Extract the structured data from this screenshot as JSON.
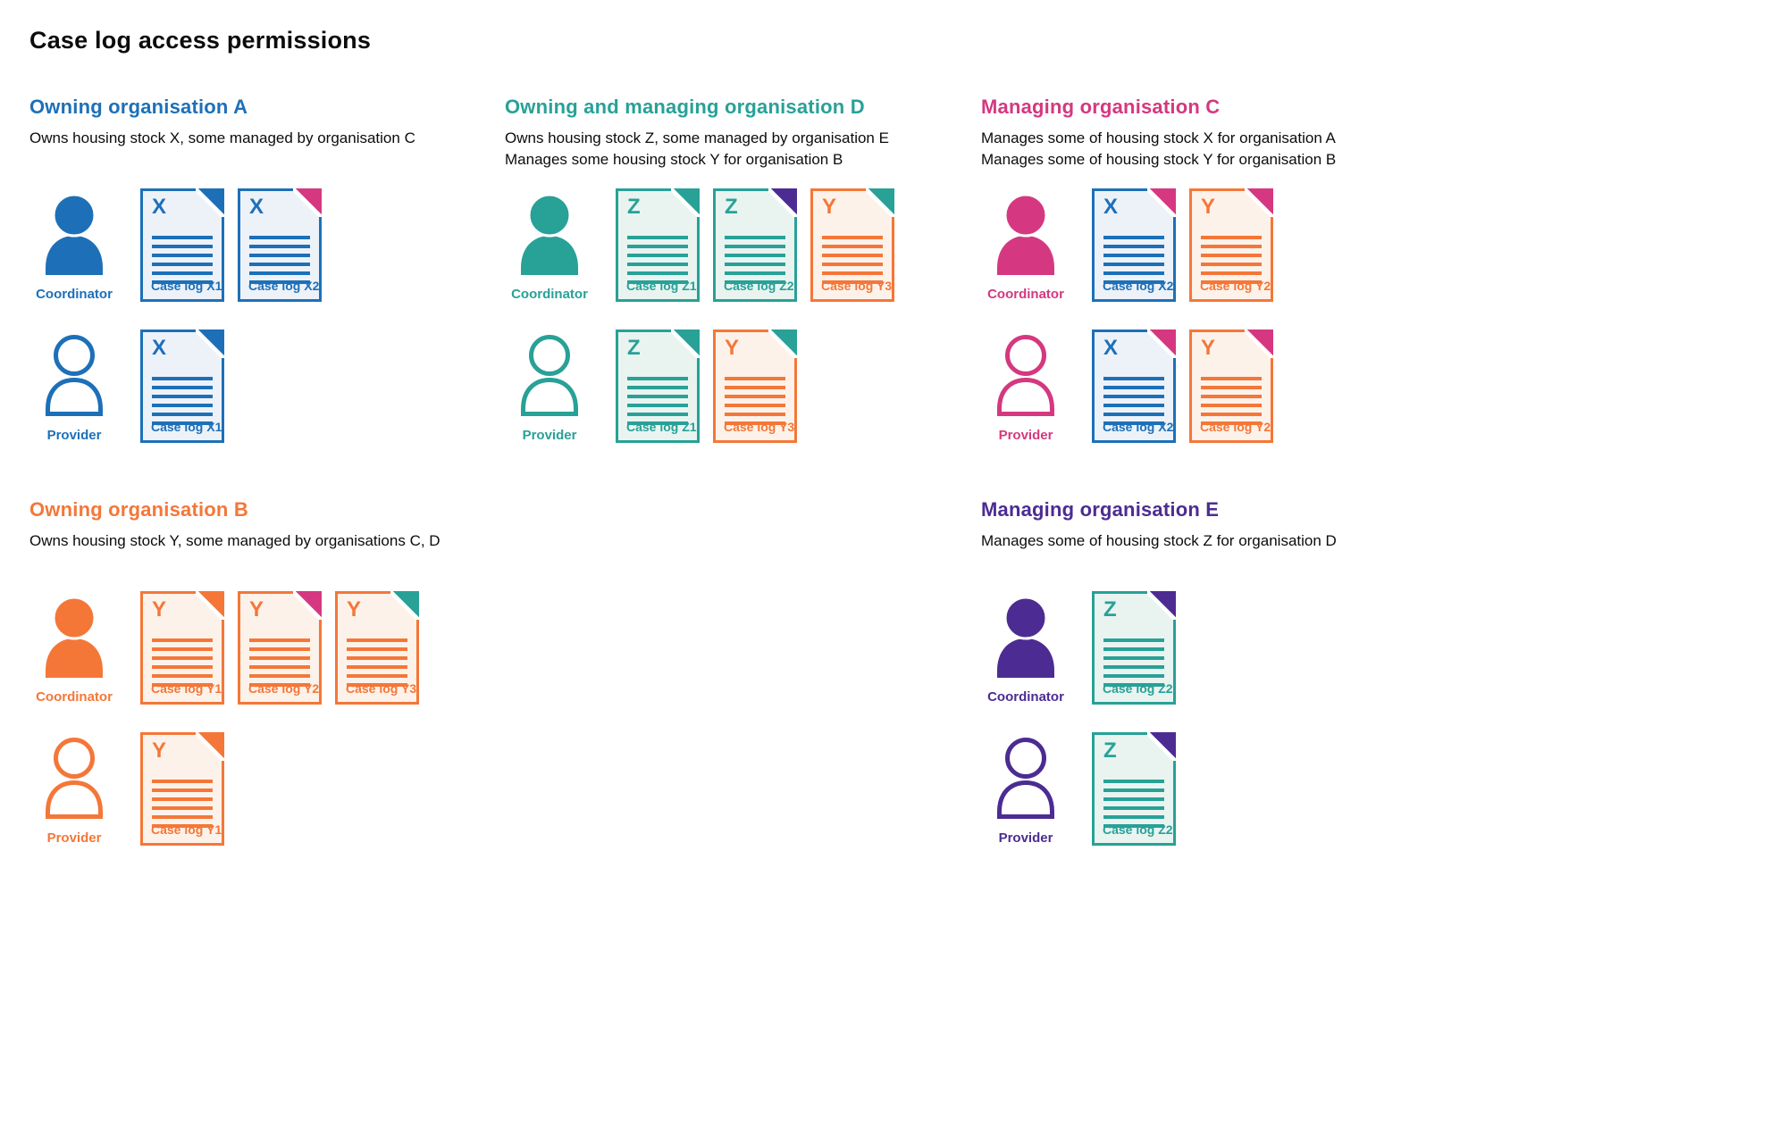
{
  "page": {
    "title": "Case log access permissions",
    "background": "#ffffff",
    "text_color": "#0b0c0c"
  },
  "colors": {
    "blue": "#1d70b8",
    "teal": "#28a197",
    "pink": "#d53880",
    "orange": "#f47738",
    "purple": "#4c2c92"
  },
  "doc_tints": {
    "blue": "#edf2f9",
    "teal": "#e9f4f1",
    "orange": "#fdf2ea"
  },
  "sections": [
    {
      "id": "owning-organisation-a",
      "heading": "Owning organisation A",
      "color": "blue",
      "description_lines": [
        "Owns housing stock X, some managed by organisation C"
      ],
      "grid": {
        "row": 1,
        "col": 1
      },
      "rows": [
        {
          "role": "Coordinator",
          "person_style": "filled",
          "person_color": "blue",
          "docs": [
            {
              "letter": "X",
              "label": "Case log X1",
              "doc_color": "blue",
              "fold_color": "blue"
            },
            {
              "letter": "X",
              "label": "Case log X2",
              "doc_color": "blue",
              "fold_color": "pink"
            }
          ]
        },
        {
          "role": "Provider",
          "person_style": "outline",
          "person_color": "blue",
          "docs": [
            {
              "letter": "X",
              "label": "Case log X1",
              "doc_color": "blue",
              "fold_color": "blue"
            }
          ]
        }
      ]
    },
    {
      "id": "owning-and-managing-organisation-d",
      "heading": "Owning and managing organisation D",
      "color": "teal",
      "description_lines": [
        "Owns housing stock Z, some managed by organisation E",
        "Manages some housing stock Y for organisation B"
      ],
      "grid": {
        "row": 1,
        "col": 2
      },
      "rows": [
        {
          "role": "Coordinator",
          "person_style": "filled",
          "person_color": "teal",
          "docs": [
            {
              "letter": "Z",
              "label": "Case log Z1",
              "doc_color": "teal",
              "fold_color": "teal"
            },
            {
              "letter": "Z",
              "label": "Case log Z2",
              "doc_color": "teal",
              "fold_color": "purple"
            },
            {
              "letter": "Y",
              "label": "Case log Y3",
              "doc_color": "orange",
              "fold_color": "teal"
            }
          ]
        },
        {
          "role": "Provider",
          "person_style": "outline",
          "person_color": "teal",
          "docs": [
            {
              "letter": "Z",
              "label": "Case log Z1",
              "doc_color": "teal",
              "fold_color": "teal"
            },
            {
              "letter": "Y",
              "label": "Case log Y3",
              "doc_color": "orange",
              "fold_color": "teal"
            }
          ]
        }
      ]
    },
    {
      "id": "managing-organisation-c",
      "heading": "Managing organisation C",
      "color": "pink",
      "description_lines": [
        "Manages some of housing stock X for organisation A",
        "Manages some of housing stock Y for organisation B"
      ],
      "grid": {
        "row": 1,
        "col": 3
      },
      "rows": [
        {
          "role": "Coordinator",
          "person_style": "filled",
          "person_color": "pink",
          "docs": [
            {
              "letter": "X",
              "label": "Case log X2",
              "doc_color": "blue",
              "fold_color": "pink"
            },
            {
              "letter": "Y",
              "label": "Case log Y2",
              "doc_color": "orange",
              "fold_color": "pink"
            }
          ]
        },
        {
          "role": "Provider",
          "person_style": "outline",
          "person_color": "pink",
          "docs": [
            {
              "letter": "X",
              "label": "Case log X2",
              "doc_color": "blue",
              "fold_color": "pink"
            },
            {
              "letter": "Y",
              "label": "Case log Y2",
              "doc_color": "orange",
              "fold_color": "pink"
            }
          ]
        }
      ]
    },
    {
      "id": "owning-organisation-b",
      "heading": "Owning organisation B",
      "color": "orange",
      "description_lines": [
        "Owns housing stock Y, some managed by organisations C, D"
      ],
      "grid": {
        "row": 2,
        "col": 1
      },
      "rows": [
        {
          "role": "Coordinator",
          "person_style": "filled",
          "person_color": "orange",
          "docs": [
            {
              "letter": "Y",
              "label": "Case log Y1",
              "doc_color": "orange",
              "fold_color": "orange"
            },
            {
              "letter": "Y",
              "label": "Case log Y2",
              "doc_color": "orange",
              "fold_color": "pink"
            },
            {
              "letter": "Y",
              "label": "Case log Y3",
              "doc_color": "orange",
              "fold_color": "teal"
            }
          ]
        },
        {
          "role": "Provider",
          "person_style": "outline",
          "person_color": "orange",
          "docs": [
            {
              "letter": "Y",
              "label": "Case log Y1",
              "doc_color": "orange",
              "fold_color": "orange"
            }
          ]
        }
      ]
    },
    {
      "id": "managing-organisation-e",
      "heading": "Managing organisation E",
      "color": "purple",
      "description_lines": [
        "Manages some of housing stock Z for organisation D"
      ],
      "grid": {
        "row": 2,
        "col": 3
      },
      "rows": [
        {
          "role": "Coordinator",
          "person_style": "filled",
          "person_color": "purple",
          "docs": [
            {
              "letter": "Z",
              "label": "Case log Z2",
              "doc_color": "teal",
              "fold_color": "purple"
            }
          ]
        },
        {
          "role": "Provider",
          "person_style": "outline",
          "person_color": "purple",
          "docs": [
            {
              "letter": "Z",
              "label": "Case log Z2",
              "doc_color": "teal",
              "fold_color": "purple"
            }
          ]
        }
      ]
    }
  ]
}
